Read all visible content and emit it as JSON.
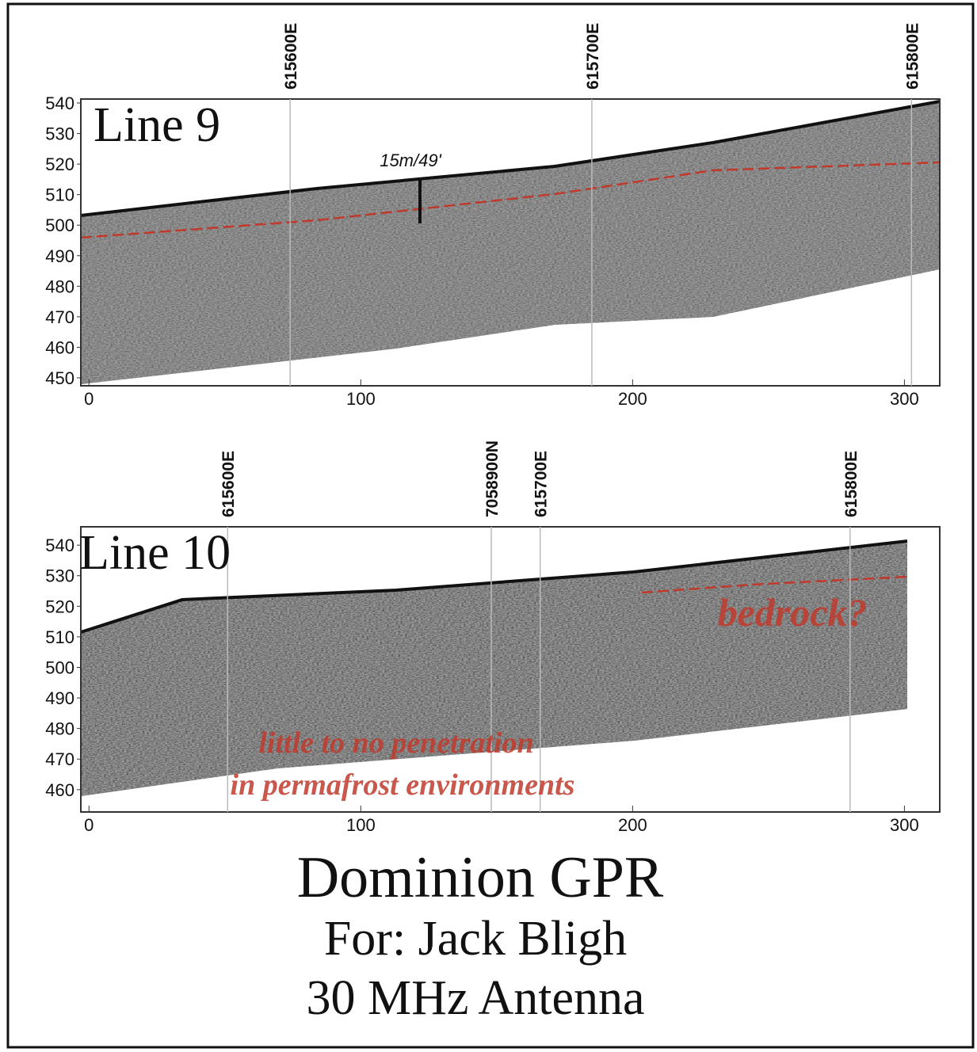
{
  "chart_data": [
    {
      "type": "radargram",
      "title": "Line 9",
      "xlim": [
        -3,
        313
      ],
      "ylim": [
        447.4,
        541.3
      ],
      "xticks": [
        0,
        100,
        200,
        300
      ],
      "yticks": [
        450,
        460,
        470,
        480,
        490,
        500,
        510,
        520,
        530,
        540
      ],
      "utm_ticks": [
        {
          "value": 74,
          "label": "615600E"
        },
        {
          "value": 185,
          "label": "615700E"
        },
        {
          "value": 302.6,
          "label": "615800E"
        }
      ],
      "annotations": [
        "15m/49'"
      ]
    },
    {
      "type": "radargram",
      "title": "Line 10",
      "xlim": [
        -3,
        313
      ],
      "ylim": [
        452.7,
        546
      ],
      "xticks": [
        0,
        100,
        200,
        300
      ],
      "yticks": [
        460,
        470,
        480,
        490,
        500,
        510,
        520,
        530,
        540
      ],
      "utm_ticks": [
        {
          "value": 51,
          "label": "615600E"
        },
        {
          "value": 148,
          "label": "7058900N"
        },
        {
          "value": 166,
          "label": "615700E"
        },
        {
          "value": 280,
          "label": "615800E"
        }
      ],
      "annotations": [
        "bedrock?",
        "little to no penetration",
        "in permafrost environments"
      ]
    }
  ],
  "caption": {
    "title": "Dominion GPR",
    "client": "For: Jack Bligh",
    "antenna": "30 MHz Antenna"
  }
}
